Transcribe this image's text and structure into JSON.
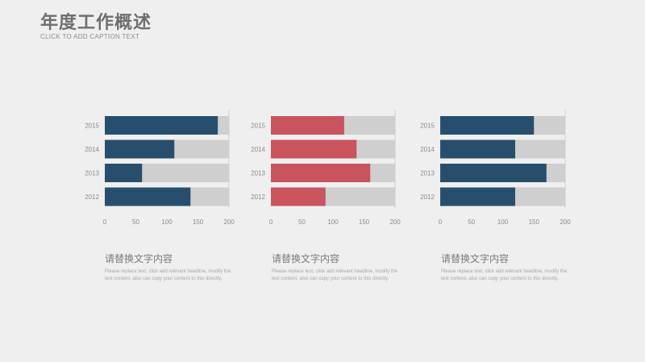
{
  "header": {
    "title": "年度工作概述",
    "subtitle": "CLICK TO ADD CAPTION TEXT"
  },
  "colors": {
    "background": "#efefef",
    "track": "#cfcfcf",
    "blue": "#274f6d",
    "red": "#c9545e"
  },
  "chart_data": [
    {
      "type": "bar",
      "orientation": "horizontal",
      "categories": [
        "2015",
        "2014",
        "2013",
        "2012"
      ],
      "values": [
        182,
        112,
        60,
        138
      ],
      "xlim": [
        0,
        200
      ],
      "xticks": [
        "0",
        "50",
        "100",
        "150",
        "200"
      ],
      "color": "#274f6d",
      "grid": false
    },
    {
      "type": "bar",
      "orientation": "horizontal",
      "categories": [
        "2015",
        "2014",
        "2013",
        "2012"
      ],
      "values": [
        118,
        138,
        160,
        88
      ],
      "xlim": [
        0,
        200
      ],
      "xticks": [
        "0",
        "50",
        "100",
        "150",
        "200"
      ],
      "color": "#c9545e",
      "grid": false
    },
    {
      "type": "bar",
      "orientation": "horizontal",
      "categories": [
        "2015",
        "2014",
        "2013",
        "2012"
      ],
      "values": [
        150,
        120,
        170,
        120
      ],
      "xlim": [
        0,
        200
      ],
      "xticks": [
        "0",
        "50",
        "100",
        "150",
        "200"
      ],
      "color": "#274f6d",
      "grid": false
    }
  ],
  "captions": [
    {
      "title": "请替换文字内容",
      "body": "Please replace text, click add relevant headline, modify the text content, also can copy your content to this directly."
    },
    {
      "title": "请替换文字内容",
      "body": "Please replace text, click add relevant headline, modify the text content, also can copy your content to this directly."
    },
    {
      "title": "请替换文字内容",
      "body": "Please replace text, click add relevant headline, modify the text content, also can copy your content to this directly."
    }
  ]
}
